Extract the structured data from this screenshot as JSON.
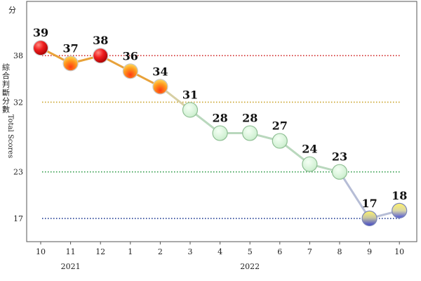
{
  "chart_data": {
    "type": "line",
    "title": "",
    "y_unit": "分",
    "ylabel_cjk": "綜合判斷分數",
    "ylabel_en": "Total Scores",
    "categories": [
      "10",
      "11",
      "12",
      "1",
      "2",
      "3",
      "4",
      "5",
      "6",
      "7",
      "8",
      "9",
      "10"
    ],
    "year_labels": [
      {
        "text": "2021",
        "category_index": 1
      },
      {
        "text": "2022",
        "category_index": 7
      }
    ],
    "values": [
      39,
      37,
      38,
      36,
      34,
      31,
      28,
      28,
      27,
      24,
      23,
      17,
      18
    ],
    "yticks": [
      17,
      23,
      32,
      38
    ],
    "ylim": [
      14,
      45
    ],
    "thresholds": [
      {
        "value": 38,
        "color": "#d22b2b"
      },
      {
        "value": 32,
        "color": "#c9a227"
      },
      {
        "value": 23,
        "color": "#2e9b47"
      },
      {
        "value": 17,
        "color": "#1f3a93"
      }
    ],
    "point_colors": [
      "red",
      "orange",
      "red",
      "orange",
      "orange",
      "green",
      "green",
      "green",
      "green",
      "green",
      "green",
      "blue",
      "yellow-blue"
    ],
    "line_colors": {
      "hot": "#e8a23a",
      "stable": "#b9d8bd",
      "cool": "#b6bdd6"
    },
    "grid": false,
    "legend": "none"
  }
}
